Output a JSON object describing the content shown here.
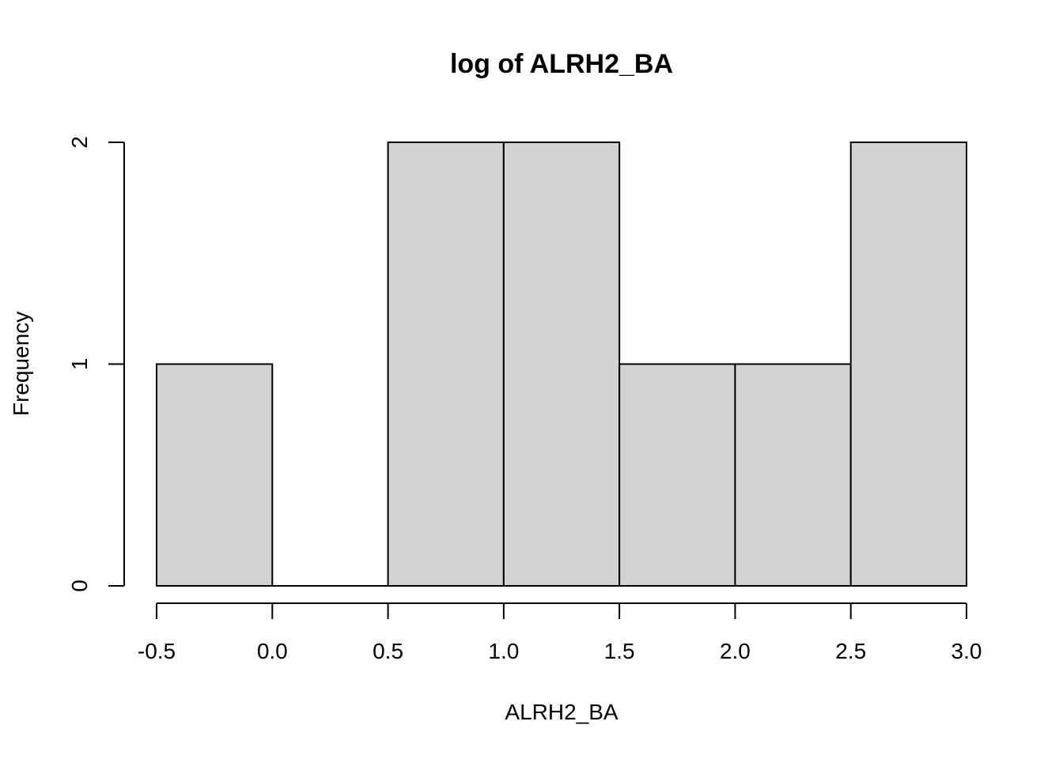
{
  "chart_data": {
    "type": "bar",
    "title": "log of ALRH2_BA",
    "xlabel": "ALRH2_BA",
    "ylabel": "Frequency",
    "bins": [
      {
        "start": -0.5,
        "end": 0.0,
        "count": 1
      },
      {
        "start": 0.0,
        "end": 0.5,
        "count": 0
      },
      {
        "start": 0.5,
        "end": 1.0,
        "count": 2
      },
      {
        "start": 1.0,
        "end": 1.5,
        "count": 2
      },
      {
        "start": 1.5,
        "end": 2.0,
        "count": 1
      },
      {
        "start": 2.0,
        "end": 2.5,
        "count": 1
      },
      {
        "start": 2.5,
        "end": 3.0,
        "count": 2
      }
    ],
    "xlim": [
      -0.5,
      3.0
    ],
    "ylim": [
      0,
      2
    ],
    "x_ticks": [
      -0.5,
      0.0,
      0.5,
      1.0,
      1.5,
      2.0,
      2.5,
      3.0
    ],
    "x_tick_labels": [
      "-0.5",
      "0.0",
      "0.5",
      "1.0",
      "1.5",
      "2.0",
      "2.5",
      "3.0"
    ],
    "y_ticks": [
      0,
      1,
      2
    ],
    "y_tick_labels": [
      "0",
      "1",
      "2"
    ],
    "bar_color": "#d3d3d3",
    "edge_color": "#000000",
    "grid": false,
    "legend": "none"
  }
}
